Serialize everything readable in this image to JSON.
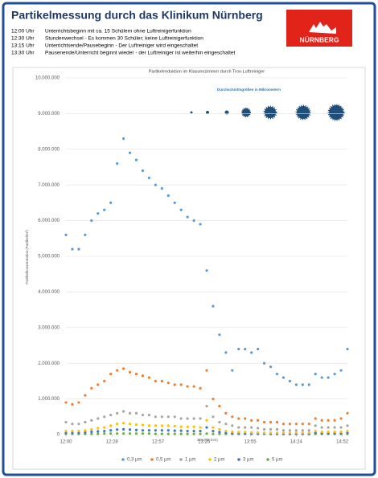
{
  "header": {
    "title": "Partikelmessung durch das Klinikum Nürnberg",
    "logo": "NÜRNBERG",
    "schedule": [
      {
        "time": "12:00 Uhr",
        "text": "Unterrichtsbeginn mit ca. 15 Schülern ohne Luftreinigerfunktion"
      },
      {
        "time": "12:30 Uhr",
        "text": "Stundenwechsel - Es kommen 30 Schüler; keine Luftreinigerfunktion"
      },
      {
        "time": "13:15 Uhr",
        "text": "Unterrichtsende/Pausebeginn - Der Luftreiniger wird eingeschaltet"
      },
      {
        "time": "13:30 Uhr",
        "text": "Pausenende/Unterricht beginnt wieder - der Luftreiniger ist weiterhin eingeschaltet"
      }
    ]
  },
  "chart_data": {
    "type": "scatter",
    "title": "Partikelreduktion im Klassenzimmer durch Trox-Luftreiniger",
    "annotation": "Durchschnittsgrößen in Mikrometern",
    "x_label": "Zeit (hh:mm)",
    "y_label": "Partikelkonzentration (Partikel/m³)",
    "x": [
      720,
      724,
      728,
      732,
      736,
      740,
      744,
      748,
      752,
      756,
      760,
      764,
      768,
      772,
      776,
      780,
      784,
      788,
      792,
      796,
      800,
      804,
      808,
      812,
      816,
      820,
      824,
      828,
      832,
      836,
      840,
      844,
      848,
      852,
      856,
      860,
      864,
      868,
      872,
      876,
      880,
      884,
      888,
      892,
      896
    ],
    "series": [
      {
        "name": "0,3 µm",
        "color": "#5b9bd5",
        "values": [
          5600000,
          5200000,
          5200000,
          5600000,
          6000000,
          6200000,
          6300000,
          6500000,
          7600000,
          8300000,
          7900000,
          7700000,
          7400000,
          7200000,
          7000000,
          6900000,
          6700000,
          6500000,
          6300000,
          6100000,
          6000000,
          5900000,
          4600000,
          3600000,
          2800000,
          2300000,
          1800000,
          2400000,
          2400000,
          2300000,
          2400000,
          2000000,
          1900000,
          1700000,
          1600000,
          1500000,
          1400000,
          1400000,
          1400000,
          1700000,
          1600000,
          1600000,
          1700000,
          1800000,
          2400000
        ]
      },
      {
        "name": "0,5 µm",
        "color": "#ed7d31",
        "values": [
          900000,
          850000,
          900000,
          1100000,
          1300000,
          1400000,
          1500000,
          1700000,
          1800000,
          1850000,
          1750000,
          1700000,
          1650000,
          1600000,
          1500000,
          1500000,
          1450000,
          1400000,
          1400000,
          1350000,
          1350000,
          1300000,
          1800000,
          1000000,
          800000,
          600000,
          500000,
          450000,
          450000,
          400000,
          400000,
          350000,
          350000,
          350000,
          300000,
          300000,
          300000,
          300000,
          300000,
          450000,
          400000,
          400000,
          400000,
          450000,
          600000
        ]
      },
      {
        "name": "1 µm",
        "color": "#a5a5a5",
        "values": [
          350000,
          300000,
          300000,
          350000,
          400000,
          450000,
          500000,
          550000,
          600000,
          650000,
          600000,
          600000,
          550000,
          550000,
          500000,
          500000,
          500000,
          500000,
          450000,
          450000,
          450000,
          450000,
          800000,
          500000,
          350000,
          300000,
          250000,
          200000,
          200000,
          200000,
          180000,
          150000,
          150000,
          150000,
          120000,
          120000,
          120000,
          120000,
          120000,
          250000,
          200000,
          200000,
          200000,
          200000,
          250000
        ]
      },
      {
        "name": "2 µm",
        "color": "#ffc000",
        "values": [
          100000,
          100000,
          100000,
          120000,
          150000,
          180000,
          200000,
          250000,
          300000,
          320000,
          300000,
          280000,
          270000,
          250000,
          250000,
          250000,
          250000,
          240000,
          220000,
          220000,
          220000,
          200000,
          400000,
          200000,
          150000,
          100000,
          80000,
          70000,
          70000,
          60000,
          60000,
          50000,
          50000,
          50000,
          50000,
          50000,
          50000,
          50000,
          50000,
          100000,
          80000,
          80000,
          80000,
          80000,
          100000
        ]
      },
      {
        "name": "3 µm",
        "color": "#4472c4",
        "values": [
          50000,
          50000,
          50000,
          60000,
          80000,
          90000,
          100000,
          120000,
          140000,
          150000,
          140000,
          130000,
          120000,
          120000,
          120000,
          120000,
          120000,
          110000,
          110000,
          100000,
          100000,
          100000,
          200000,
          100000,
          70000,
          50000,
          40000,
          30000,
          30000,
          30000,
          30000,
          30000,
          20000,
          20000,
          20000,
          20000,
          20000,
          20000,
          20000,
          50000,
          40000,
          40000,
          40000,
          40000,
          50000
        ]
      },
      {
        "name": "5 µm",
        "color": "#70ad47",
        "values": [
          20000,
          20000,
          20000,
          20000,
          20000,
          20000,
          30000,
          30000,
          30000,
          30000,
          30000,
          30000,
          30000,
          30000,
          20000,
          20000,
          20000,
          20000,
          20000,
          20000,
          20000,
          20000,
          30000,
          20000,
          20000,
          20000,
          20000,
          20000,
          20000,
          20000,
          20000,
          20000,
          20000,
          20000,
          20000,
          20000,
          20000,
          20000,
          20000,
          20000,
          20000,
          20000,
          20000,
          20000,
          20000
        ]
      }
    ],
    "xlim": [
      720,
      896
    ],
    "ylim": [
      0,
      10000000
    ],
    "xticks": [
      {
        "value": 720,
        "label": "12:00"
      },
      {
        "value": 748.8,
        "label": "12:28"
      },
      {
        "value": 777.6,
        "label": "12:57"
      },
      {
        "value": 806.4,
        "label": "13:26"
      },
      {
        "value": 835.2,
        "label": "13:55"
      },
      {
        "value": 864,
        "label": "14:24"
      },
      {
        "value": 892.8,
        "label": "14:52"
      }
    ],
    "yticks": [
      0,
      {
        "value": 1000000,
        "label": "1.000.000"
      },
      {
        "value": 2000000,
        "label": "2.000.000"
      },
      {
        "value": 3000000,
        "label": "3.000.000"
      },
      {
        "value": 4000000,
        "label": "4.000.000"
      },
      {
        "value": 5000000,
        "label": "5.000.000"
      },
      {
        "value": 6000000,
        "label": "6.000.000"
      },
      {
        "value": 7000000,
        "label": "7.000.000"
      },
      {
        "value": 8000000,
        "label": "8.000.000"
      },
      {
        "value": 9000000,
        "label": "9.000.000"
      },
      {
        "value": 10000000,
        "label": "10.000.000"
      }
    ],
    "grid": true
  }
}
